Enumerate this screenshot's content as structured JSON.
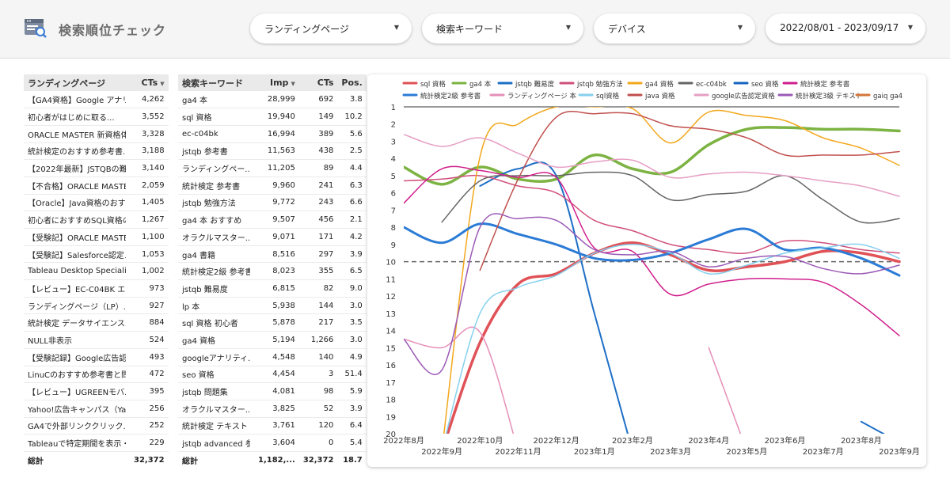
{
  "app": {
    "title": "検索順位チェック"
  },
  "filters": [
    {
      "label": "ランディングページ"
    },
    {
      "label": "検索キーワード"
    },
    {
      "label": "デバイス"
    },
    {
      "label": "2022/08/01 - 2023/09/17"
    }
  ],
  "lp_table": {
    "headers": [
      "ランディングページ",
      "CTs"
    ],
    "rows": [
      [
        "【GA4資格】Google アナリ...",
        "4,262"
      ],
      [
        "初心者がはじめに取る...",
        "3,552"
      ],
      [
        "ORACLE MASTER 新資格体...",
        "3,328"
      ],
      [
        "統計検定のおすすめ参考書...",
        "3,188"
      ],
      [
        "【2022年最新】JSTQBの難...",
        "3,140"
      ],
      [
        "【不合格】ORACLE MASTER...",
        "2,059"
      ],
      [
        "【Oracle】Java資格のおす...",
        "1,405"
      ],
      [
        "初心者におすすめSQL資格の...",
        "1,267"
      ],
      [
        "【受験記】ORACLE MASTER...",
        "1,100"
      ],
      [
        "【受験記】Salesforce認定メ...",
        "1,053"
      ],
      [
        "Tableau Desktop Specialist...",
        "1,002"
      ],
      [
        "【レビュー】EC-C04BK エ...",
        "973"
      ],
      [
        "ランディングページ（LP）...",
        "927"
      ],
      [
        "統計検定 データサイエンス...",
        "884"
      ],
      [
        "NULL非表示",
        "524"
      ],
      [
        "【受験記録】Google広告認...",
        "493"
      ],
      [
        "LinuCのおすすめ参考書と問...",
        "472"
      ],
      [
        "【レビュー】UGREENモバ...",
        "395"
      ],
      [
        "Yahoo!広告キャンパス（Ya...",
        "256"
      ],
      [
        "GA4で外部リンククリック...",
        "252"
      ],
      [
        "Tableauで特定期間を表示・...",
        "229"
      ]
    ],
    "total": [
      "総計",
      "32,372"
    ]
  },
  "kw_table": {
    "headers": [
      "検索キーワード",
      "Imp",
      "CTs",
      "Pos."
    ],
    "rows": [
      [
        "ga4 本",
        "28,999",
        "692",
        "3.8"
      ],
      [
        "sql 資格",
        "19,940",
        "149",
        "10.2"
      ],
      [
        "ec-c04bk",
        "16,994",
        "389",
        "5.6"
      ],
      [
        "jstqb 参考書",
        "11,563",
        "438",
        "2.5"
      ],
      [
        "ランディングペー...",
        "11,205",
        "89",
        "4.4"
      ],
      [
        "統計検定 参考書",
        "9,960",
        "241",
        "6.3"
      ],
      [
        "jstqb 勉強方法",
        "9,772",
        "243",
        "6.6"
      ],
      [
        "ga4 本 おすすめ",
        "9,507",
        "456",
        "2.1"
      ],
      [
        "オラクルマスター...",
        "9,071",
        "171",
        "4.2"
      ],
      [
        "ga4 書籍",
        "8,516",
        "297",
        "3.9"
      ],
      [
        "統計検定2級 参考書",
        "8,023",
        "355",
        "6.5"
      ],
      [
        "jstqb 難易度",
        "6,815",
        "82",
        "9.0"
      ],
      [
        "lp 本",
        "5,938",
        "144",
        "3.0"
      ],
      [
        "sql 資格 初心者",
        "5,878",
        "217",
        "3.5"
      ],
      [
        "ga4 資格",
        "5,194",
        "1,266",
        "3.0"
      ],
      [
        "googleアナリティ...",
        "4,548",
        "140",
        "4.9"
      ],
      [
        "seo 資格",
        "4,454",
        "3",
        "51.4"
      ],
      [
        "jstqb 問題集",
        "4,081",
        "98",
        "5.9"
      ],
      [
        "オラクルマスター...",
        "3,825",
        "52",
        "3.9"
      ],
      [
        "統計検定 テキスト",
        "3,761",
        "120",
        "6.4"
      ],
      [
        "jstqb advanced 参...",
        "3,604",
        "0",
        "5.4"
      ]
    ],
    "total": [
      "総計",
      "1,182,...",
      "32,372",
      "18.7"
    ]
  },
  "chart_data": {
    "type": "line",
    "y_reversed": true,
    "ylim": [
      1,
      20
    ],
    "yticks": [
      "1",
      "2",
      "3",
      "4",
      "5",
      "6",
      "7",
      "8",
      "9",
      "10",
      "11",
      "12",
      "13",
      "14",
      "15",
      "16",
      "17",
      "18",
      "19",
      "20"
    ],
    "reference_line": 10,
    "x_labels_top": [
      "2022年8月",
      "2022年10月",
      "2022年12月",
      "2023年2月",
      "2023年4月",
      "2023年6月",
      "2023年8月"
    ],
    "x_labels_bottom": [
      "2022年9月",
      "2022年11月",
      "2023年1月",
      "2023年3月",
      "2023年5月",
      "2023年7月",
      "2023年9月"
    ],
    "x_months": [
      "2022-08",
      "2022-09",
      "2022-10",
      "2022-11",
      "2022-12",
      "2023-01",
      "2023-02",
      "2023-03",
      "2023-04",
      "2023-05",
      "2023-06",
      "2023-07",
      "2023-08",
      "2023-09"
    ],
    "series": [
      {
        "name": "sql 資格",
        "color": "#e05257",
        "width": 3.5,
        "values": [
          null,
          21,
          14.7,
          11.3,
          10.7,
          9.5,
          8.9,
          9.6,
          10.5,
          10.3,
          10.0,
          9.4,
          9.5,
          10.0
        ]
      },
      {
        "name": "ga4 本",
        "color": "#7cb342",
        "width": 3.5,
        "values": [
          4.5,
          5.5,
          4.5,
          5.2,
          5.2,
          3.8,
          4.6,
          4.8,
          3.2,
          2.3,
          2.2,
          2.3,
          2.3,
          2.4
        ]
      },
      {
        "name": "jstqb 難易度",
        "color": "#1e6fc7",
        "width": 2,
        "values": [
          null,
          null,
          5.6,
          4.6,
          5.0,
          13.0,
          21,
          null,
          19.8,
          null,
          null,
          null,
          19.3,
          20.5
        ]
      },
      {
        "name": "jstqb 勉強方法",
        "color": "#d0507d",
        "width": 1.5,
        "values": [
          5.3,
          5.2,
          5.0,
          5.6,
          6.0,
          7.6,
          8.2,
          9.0,
          9.3,
          9.5,
          8.8,
          8.9,
          9.3,
          9.5
        ]
      },
      {
        "name": "ga4 資格",
        "color": "#f2a81d",
        "width": 1.5,
        "values": [
          null,
          21,
          3.9,
          2.0,
          1.0,
          1.0,
          1.1,
          3.1,
          1.3,
          1.5,
          1.8,
          2.8,
          3.4,
          4.4
        ]
      },
      {
        "name": "ec-c04bk",
        "color": "#666666",
        "width": 1.5,
        "values": [
          null,
          7.7,
          5.3,
          5.0,
          5.0,
          4.8,
          5.0,
          6.4,
          6.1,
          5.9,
          5.0,
          6.4,
          7.7,
          7.5
        ]
      },
      {
        "name": "seo 資格",
        "color": "#1565c0",
        "width": 1.5,
        "values": [
          null,
          null,
          null,
          null,
          null,
          null,
          null,
          null,
          19.8,
          null,
          null,
          null,
          null,
          null
        ]
      },
      {
        "name": "統計検定 参考書",
        "color": "#d01f8c",
        "width": 1.5,
        "values": [
          6.6,
          4.6,
          4.7,
          5.1,
          5.1,
          9.2,
          9.4,
          11.9,
          11.3,
          11.0,
          11.0,
          11.2,
          12.5,
          14.3
        ]
      },
      {
        "name": "統計検定2級 参考書",
        "color": "#2b7bd6",
        "width": 3,
        "values": [
          8.0,
          8.9,
          7.8,
          8.4,
          9.0,
          9.8,
          9.9,
          9.5,
          8.7,
          8.1,
          9.3,
          9.2,
          9.8,
          10.8
        ]
      },
      {
        "name": "ランディングページ 本",
        "color": "#e58fb8",
        "width": 1.5,
        "values": [
          14.5,
          15.0,
          14.1,
          21,
          null,
          18.0,
          null,
          null,
          15.0,
          21,
          null,
          null,
          null,
          null
        ]
      },
      {
        "name": "sql資格",
        "color": "#86d0ee",
        "width": 1.5,
        "values": [
          null,
          21,
          13.0,
          11.5,
          10.8,
          9.5,
          9.0,
          9.5,
          10.7,
          10.2,
          9.5,
          9.2,
          9.0,
          9.8
        ]
      },
      {
        "name": "java 資格",
        "color": "#c0504d",
        "width": 1.5,
        "values": [
          null,
          null,
          10.5,
          5.2,
          1.6,
          1.4,
          1.4,
          2.1,
          2.3,
          2.8,
          3.8,
          3.8,
          3.8,
          3.6
        ]
      },
      {
        "name": "google広告認定資格",
        "color": "#e69fc4",
        "width": 1.5,
        "values": [
          2.6,
          3.3,
          2.8,
          3.7,
          4.5,
          4.2,
          4.1,
          5.1,
          4.9,
          4.8,
          5.0,
          5.3,
          5.6,
          6.2
        ]
      },
      {
        "name": "統計検定3級 テキスト",
        "color": "#9b59b6",
        "width": 1.5,
        "values": [
          14.5,
          16.3,
          8.0,
          7.5,
          7.6,
          9.3,
          9.6,
          9.4,
          10.3,
          9.8,
          9.7,
          10.4,
          10.7,
          10.2
        ]
      },
      {
        "name": "gaiq ga4",
        "color": "#d4763b",
        "width": 1.5,
        "values": [
          null,
          null,
          null,
          null,
          null,
          null,
          null,
          null,
          null,
          null,
          null,
          null,
          null,
          null
        ]
      }
    ]
  }
}
